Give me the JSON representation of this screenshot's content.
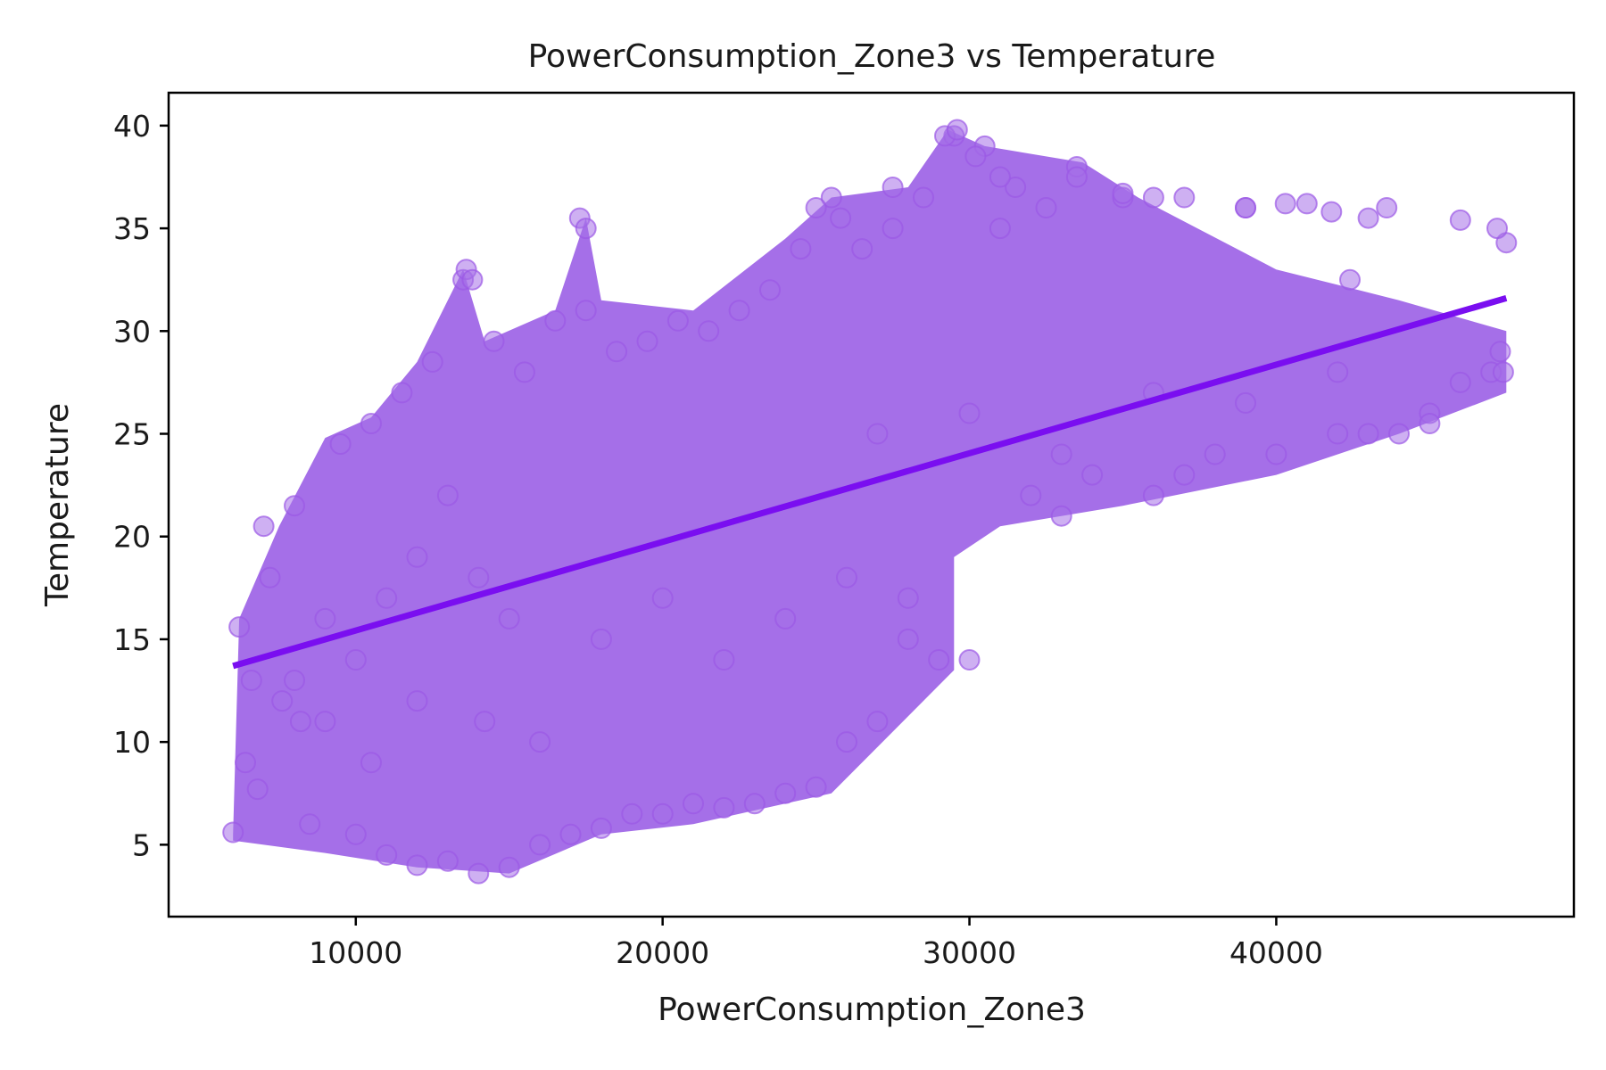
{
  "chart_data": {
    "type": "scatter",
    "title": "PowerConsumption_Zone3 vs Temperature",
    "xlabel": "PowerConsumption_Zone3",
    "ylabel": "Temperature",
    "xlim": [
      3900,
      49700
    ],
    "ylim": [
      1.5,
      41.6
    ],
    "xticks": [
      10000,
      20000,
      30000,
      40000
    ],
    "xtick_labels": [
      "10000",
      "20000",
      "30000",
      "40000"
    ],
    "yticks": [
      5,
      10,
      15,
      20,
      25,
      30,
      35,
      40
    ],
    "ytick_labels": [
      "5",
      "10",
      "15",
      "20",
      "25",
      "30",
      "35",
      "40"
    ],
    "grid": false,
    "legend": "none",
    "colors": {
      "points": "#a56fe8",
      "point_edge": "#9b59e6",
      "regression_line": "#7a0ef0",
      "axes": "#000000"
    },
    "series": [
      {
        "kind": "points",
        "values_note": "dense cloud of observations",
        "x": [
          6000,
          6200,
          6400,
          6800,
          7200,
          7600,
          8000,
          8500,
          9000,
          9500,
          10000,
          10500,
          11000,
          11500,
          12000,
          12500,
          13000,
          13500,
          14000,
          14500,
          15000,
          15500,
          16000,
          16500,
          17000,
          17500,
          18000,
          18500,
          19000,
          19500,
          20000,
          20500,
          21000,
          21500,
          22000,
          22500,
          23000,
          23500,
          24000,
          24500,
          25000,
          25500,
          26000,
          26500,
          27000,
          27500,
          28000,
          28500,
          29000,
          29500,
          30000,
          30500,
          31000,
          31500,
          32000,
          32500,
          33000,
          33500,
          34000,
          35000,
          36000,
          37000,
          38000,
          39000,
          40000,
          41000,
          42000,
          43000,
          44000,
          45000,
          46000,
          47000,
          47500,
          7000,
          8000,
          9000,
          10000,
          11000,
          12000,
          13000,
          14000,
          15000,
          13600,
          13800,
          17300,
          17500,
          25000,
          25800,
          27500,
          29200,
          29600,
          30200,
          31000,
          33500,
          35000,
          36000,
          37000,
          39000,
          40300,
          41800,
          42400,
          43000,
          43600,
          46000,
          47200,
          47400,
          12000,
          14200,
          16000,
          18000,
          20000,
          22000,
          24000,
          26000,
          28000,
          6600,
          8200,
          10500,
          27000,
          30000,
          33000,
          36000,
          39000,
          42000,
          45000,
          47300
        ],
        "y": [
          5.6,
          15.6,
          9.0,
          7.7,
          18.0,
          12.0,
          21.5,
          6.0,
          16.0,
          24.5,
          5.5,
          25.5,
          4.5,
          27.0,
          4.0,
          28.5,
          4.2,
          32.5,
          3.6,
          29.5,
          3.9,
          28.0,
          5.0,
          30.5,
          5.5,
          31.0,
          5.8,
          29.0,
          6.5,
          29.5,
          6.5,
          30.5,
          7.0,
          30.0,
          6.8,
          31.0,
          7.0,
          32.0,
          7.5,
          34.0,
          7.8,
          36.5,
          10.0,
          34.0,
          11.0,
          35.0,
          15.0,
          36.5,
          14.0,
          39.5,
          14.0,
          39.0,
          35.0,
          37.0,
          22.0,
          36.0,
          21.0,
          38.0,
          23.0,
          36.5,
          22.0,
          23.0,
          24.0,
          36.0,
          24.0,
          36.2,
          25.0,
          25.0,
          25.0,
          26.0,
          27.5,
          28.0,
          34.3,
          20.5,
          13.0,
          11.0,
          14.0,
          17.0,
          19.0,
          22.0,
          18.0,
          16.0,
          33.0,
          32.5,
          35.5,
          35.0,
          36.0,
          35.5,
          37.0,
          39.5,
          39.8,
          38.5,
          37.5,
          37.5,
          36.7,
          36.5,
          36.5,
          36.0,
          36.2,
          35.8,
          32.5,
          35.5,
          36.0,
          35.4,
          35.0,
          28.0,
          12.0,
          11.0,
          10.0,
          15.0,
          17.0,
          14.0,
          16.0,
          18.0,
          17.0,
          13.0,
          11.0,
          9.0,
          25.0,
          26.0,
          24.0,
          27.0,
          26.5,
          28.0,
          25.5,
          29.0
        ]
      },
      {
        "kind": "regression-line",
        "x": [
          6000,
          47500
        ],
        "y": [
          13.7,
          31.6
        ]
      }
    ]
  }
}
